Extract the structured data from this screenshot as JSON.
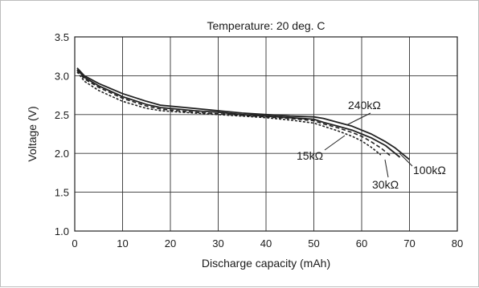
{
  "chart_data": {
    "type": "line",
    "title": "Temperature: 20 deg. C",
    "xlabel": "Discharge capacity (mAh)",
    "ylabel": "Voltage (V)",
    "xlim": [
      0,
      80
    ],
    "ylim": [
      1.0,
      3.5
    ],
    "xticks": [
      "0",
      "10",
      "20",
      "30",
      "40",
      "50",
      "60",
      "70",
      "80"
    ],
    "yticks": [
      "1.0",
      "1.5",
      "2.0",
      "2.5",
      "3.0",
      "3.5"
    ],
    "grid": true,
    "series": [
      {
        "name": "240kΩ",
        "dash": "solid",
        "x": [
          0.5,
          2,
          5,
          10,
          15,
          18,
          25,
          30,
          35,
          40,
          45,
          50,
          52,
          55,
          58,
          60,
          62,
          65,
          67,
          70
        ],
        "y": [
          3.1,
          3.0,
          2.9,
          2.77,
          2.67,
          2.62,
          2.58,
          2.55,
          2.52,
          2.5,
          2.48,
          2.47,
          2.45,
          2.4,
          2.35,
          2.3,
          2.25,
          2.15,
          2.07,
          1.92
        ]
      },
      {
        "name": "100kΩ",
        "dash": "solid",
        "x": [
          0.5,
          2,
          5,
          10,
          15,
          18,
          25,
          30,
          35,
          40,
          45,
          50,
          52,
          55,
          58,
          60,
          62,
          65,
          68
        ],
        "y": [
          3.08,
          2.98,
          2.87,
          2.73,
          2.63,
          2.59,
          2.55,
          2.53,
          2.5,
          2.48,
          2.46,
          2.44,
          2.4,
          2.35,
          2.3,
          2.25,
          2.2,
          2.1,
          1.95
        ]
      },
      {
        "name": "30kΩ",
        "dash": "dashed",
        "x": [
          0.5,
          2,
          5,
          10,
          15,
          18,
          25,
          30,
          35,
          40,
          45,
          50,
          52,
          55,
          58,
          60,
          62,
          64,
          66
        ],
        "y": [
          3.07,
          2.96,
          2.85,
          2.71,
          2.61,
          2.57,
          2.53,
          2.51,
          2.49,
          2.47,
          2.45,
          2.42,
          2.38,
          2.33,
          2.27,
          2.22,
          2.15,
          2.07,
          1.97
        ]
      },
      {
        "name": "15kΩ",
        "dash": "shortdash",
        "x": [
          0.5,
          2,
          5,
          10,
          15,
          18,
          25,
          30,
          35,
          40,
          45,
          50,
          52,
          55,
          58,
          60,
          62,
          64
        ],
        "y": [
          3.05,
          2.93,
          2.81,
          2.67,
          2.58,
          2.55,
          2.52,
          2.5,
          2.48,
          2.46,
          2.43,
          2.39,
          2.35,
          2.29,
          2.22,
          2.16,
          2.08,
          1.98
        ]
      }
    ],
    "annotations": [
      {
        "text": "240kΩ",
        "series": "240kΩ"
      },
      {
        "text": "15kΩ",
        "series": "15kΩ"
      },
      {
        "text": "100kΩ",
        "series": "100kΩ"
      },
      {
        "text": "30kΩ",
        "series": "30kΩ"
      }
    ]
  }
}
